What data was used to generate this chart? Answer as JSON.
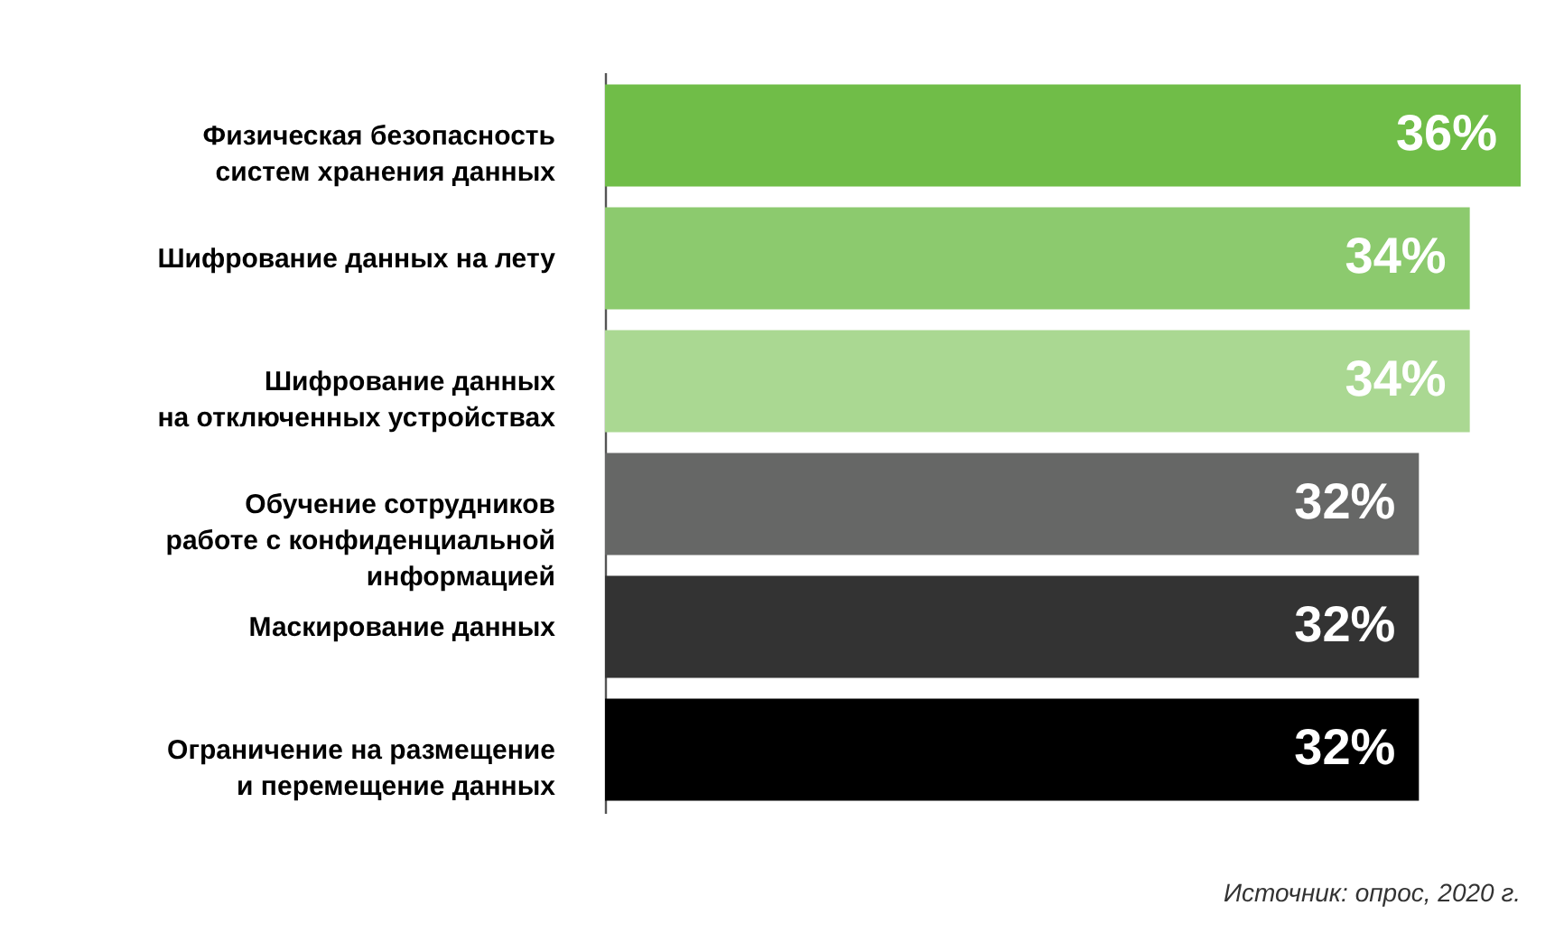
{
  "chart_data": {
    "type": "bar",
    "orientation": "horizontal",
    "categories": [
      "Физическая безопасность\nсистем хранения данных",
      "Шифрование данных на лету",
      "Шифрование данных\nна отключенных устройствах",
      "Обучение сотрудников\nработе с конфиденциальной\nинформацией",
      "Маскирование данных",
      "Ограничение на размещение\nи перемещение данных"
    ],
    "values": [
      36,
      34,
      34,
      32,
      32,
      32
    ],
    "value_labels": [
      "36%",
      "34%",
      "34%",
      "32%",
      "32%",
      "32%"
    ],
    "colors": [
      "#70bd48",
      "#8cca6e",
      "#aad892",
      "#666766",
      "#333333",
      "#000000"
    ],
    "annotations": [
      "Источник: опрос, 2020 г."
    ]
  }
}
